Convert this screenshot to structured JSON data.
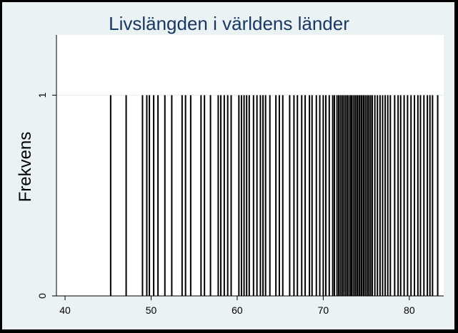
{
  "chart_data": {
    "type": "bar",
    "title": "Livslängden i världens länder",
    "xlabel": "",
    "ylabel": "Frekvens",
    "xlim": [
      39,
      84
    ],
    "ylim": [
      0,
      1.3
    ],
    "x_ticks": [
      40,
      50,
      60,
      70,
      80
    ],
    "y_ticks": [
      0,
      1
    ],
    "grid": "horizontal",
    "bar_color": "#000000",
    "values": [
      45.3,
      47.1,
      49.0,
      49.5,
      49.8,
      50.3,
      50.8,
      51.6,
      52.4,
      53.6,
      54.0,
      54.6,
      55.8,
      56.2,
      56.9,
      57.8,
      58.1,
      58.5,
      58.9,
      59.3,
      60.2,
      60.5,
      60.8,
      61.1,
      61.4,
      61.9,
      62.3,
      62.7,
      63.0,
      63.3,
      63.8,
      64.5,
      64.9,
      65.3,
      66.1,
      66.6,
      67.0,
      67.5,
      67.9,
      68.4,
      68.7,
      69.2,
      69.6,
      70.0,
      70.3,
      70.7,
      71.1,
      71.3,
      71.6,
      71.8,
      72.0,
      72.2,
      72.4,
      72.6,
      72.8,
      73.0,
      73.2,
      73.3,
      73.5,
      73.7,
      73.9,
      74.0,
      74.2,
      74.4,
      74.5,
      74.7,
      74.9,
      75.1,
      75.3,
      75.5,
      75.7,
      76.0,
      76.3,
      76.6,
      76.9,
      77.2,
      77.5,
      77.8,
      78.3,
      78.7,
      79.0,
      79.4,
      79.8,
      80.2,
      80.6,
      81.0,
      81.3,
      81.7,
      82.1,
      82.4,
      82.7,
      83.3
    ]
  }
}
